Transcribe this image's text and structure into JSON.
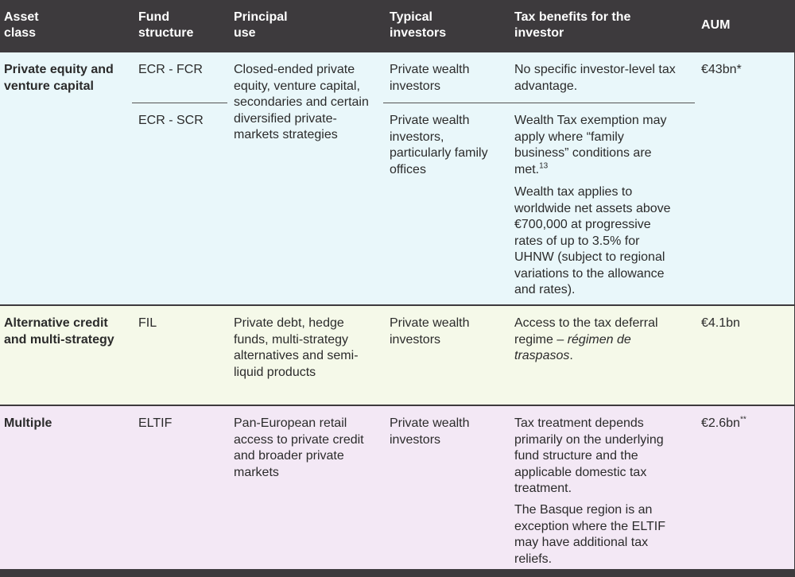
{
  "header": {
    "asset_class": "Asset class",
    "fund_structure": "Fund structure",
    "principal_use": "Principal use",
    "typical_investors": "Typical investors",
    "tax_benefits": "Tax benefits for the investor",
    "aum": "AUM"
  },
  "rows": {
    "pe_vc": {
      "asset_class": "Private equity and venture capital",
      "structure_1": "ECR - FCR",
      "structure_2": "ECR - SCR",
      "principal_use": "Closed-ended private equity, venture capital, secondaries and certain diversified private-markets strategies",
      "investors_1": "Private wealth investors",
      "investors_2": "Private wealth investors, particularly family offices",
      "tax_1": "No specific investor-level tax advantage.",
      "tax_2": "Wealth Tax exemption may apply where “family business” conditions are met.",
      "tax_2_note": "13",
      "tax_3": "Wealth tax applies to worldwide net assets above €700,000 at progressive rates of up to 3.5% for UHNW (subject to regional variations to the allowance and rates).",
      "aum": "€43bn*"
    },
    "alt_credit": {
      "asset_class": "Alternative credit and multi-strategy",
      "structure": "FIL",
      "principal_use": "Private debt, hedge funds, multi-strategy alternatives and semi-liquid products",
      "investors": "Private wealth investors",
      "tax_text": "Access to the tax deferral regime – ",
      "tax_italic": "régimen de traspasos",
      "tax_end": ".",
      "aum": "€4.1bn"
    },
    "multiple": {
      "asset_class": "Multiple",
      "structure": "ELTIF",
      "principal_use": "Pan-European retail access to private credit and broader private markets",
      "investors": "Private wealth investors",
      "tax_1": "Tax treatment depends primarily on the underlying fund structure and the applicable domestic tax treatment.",
      "tax_2": "The Basque region is an exception where the ELTIF may have additional tax reliefs.",
      "aum": "€2.6bn",
      "aum_mark": "**"
    }
  },
  "colors": {
    "header_bg": "#3d3a3d",
    "row1_bg": "#e9f7fa",
    "row2_bg": "#f5f9e9",
    "row3_bg": "#f3e8f5"
  }
}
